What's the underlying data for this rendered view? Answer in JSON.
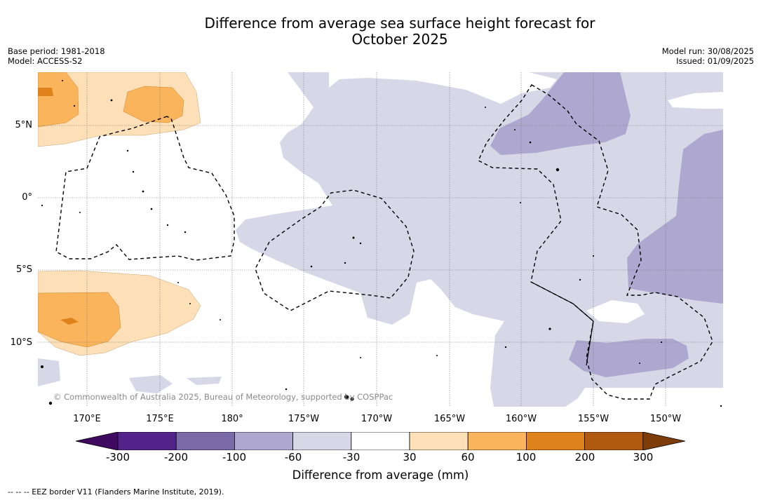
{
  "title_line1": "Difference from average sea surface height forecast for",
  "title_line2": "October 2025",
  "meta_left": {
    "base_period": "Base period: 1981-2018",
    "model": "Model: ACCESS-S2"
  },
  "meta_right": {
    "model_run": "Model run: 30/08/2025",
    "issued": "Issued: 01/09/2025"
  },
  "map": {
    "latitude_labels": [
      "5°N",
      "0°",
      "5°S",
      "10°S"
    ],
    "longitude_labels": [
      "170°E",
      "175°E",
      "180°",
      "175°W",
      "170°W",
      "165°W",
      "160°W",
      "155°W",
      "150°W"
    ],
    "copyright": "© Commonwealth of Australia 2025, Bureau of Meteorology, supported by COSPPac"
  },
  "colorbar": {
    "label": "Difference from average (mm)",
    "ticks": [
      "-300",
      "-200",
      "-100",
      "-60",
      "-30",
      "30",
      "60",
      "100",
      "200",
      "300"
    ],
    "colors": [
      "#3f0a5f",
      "#54238a",
      "#7a6aa8",
      "#aea8d0",
      "#d7d7e8",
      "#ffffff",
      "#fde0b8",
      "#f9b45c",
      "#e0821b",
      "#b05a10",
      "#7d3d0b"
    ]
  },
  "footnote": "--  --  -- EEZ border V11 (Flanders Marine Institute, 2019)."
}
